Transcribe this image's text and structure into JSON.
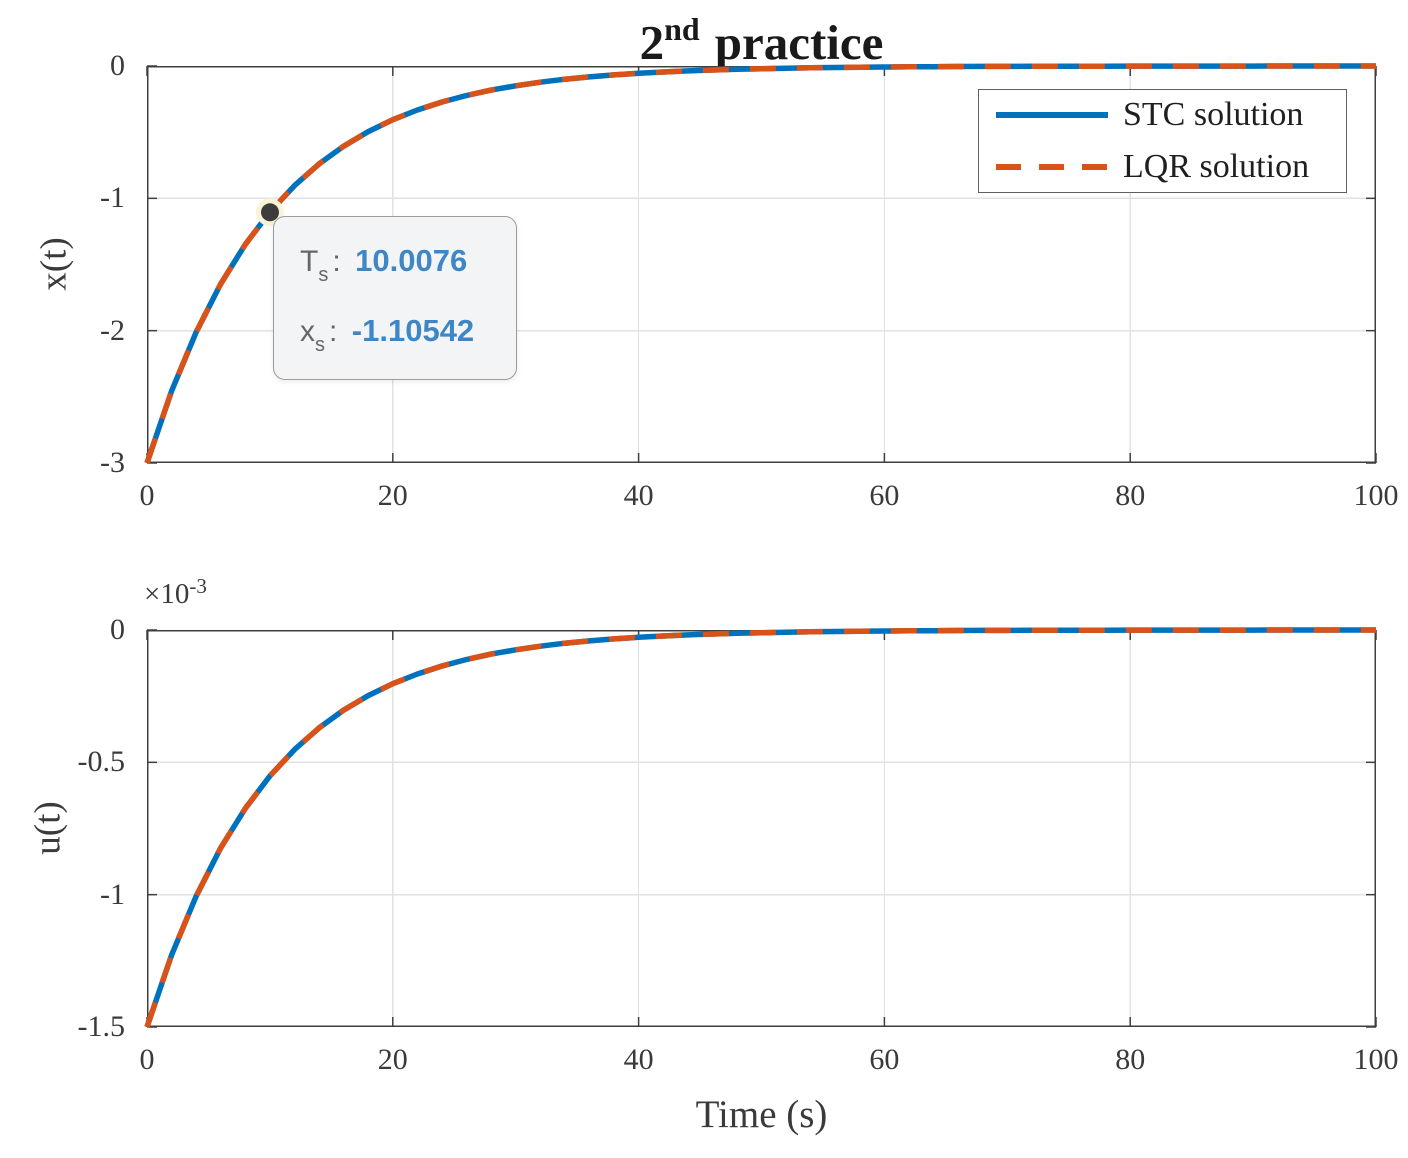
{
  "figure": {
    "title": {
      "base": "2",
      "sup": "nd",
      "rest": "practice"
    }
  },
  "colors": {
    "stc_line": "#0072BD",
    "lqr_line": "#D95319",
    "axis": "#3f3f3f",
    "grid": "#e2e2e2",
    "tick_label": "#3a3a3a",
    "legend_border": "#5f5f5f",
    "datatip_label": "#666666",
    "datatip_value": "#3e86c4",
    "marker": "#3c3c3c",
    "marker_halo": "#f8f4d8"
  },
  "legend": {
    "items": [
      {
        "label": "STC solution",
        "color": "#0072BD",
        "style": "solid"
      },
      {
        "label": "LQR solution",
        "color": "#D95319",
        "style": "dashed"
      }
    ]
  },
  "datatip": {
    "rows": [
      {
        "label": "T",
        "sub": "s",
        "value": "10.0076"
      },
      {
        "label": "x",
        "sub": "s",
        "value": "-1.10542"
      }
    ],
    "point": {
      "t": 10.0076,
      "value": -1.10542
    }
  },
  "chart_data": [
    {
      "type": "line",
      "title": "2nd practice",
      "xlabel": "",
      "ylabel": "x(t)",
      "xlim": [
        0,
        100
      ],
      "ylim": [
        -3,
        0
      ],
      "xticks": [
        0,
        20,
        40,
        60,
        80,
        100
      ],
      "yticks": [
        0,
        -1,
        -2,
        -3
      ],
      "grid": true,
      "legend_position": "northeast",
      "note": "STC and LQR curves coincide: x(t) = -3*exp(-t/10)",
      "marker_point": {
        "t": 10.0076,
        "value": -1.10542
      },
      "x": [
        0,
        2,
        4,
        6,
        8,
        10,
        12,
        14,
        16,
        18,
        20,
        22,
        24,
        26,
        28,
        30,
        32,
        34,
        36,
        38,
        40,
        42,
        44,
        46,
        48,
        50,
        52,
        54,
        56,
        58,
        60,
        62,
        64,
        66,
        68,
        70,
        72,
        74,
        76,
        78,
        80,
        82,
        84,
        86,
        88,
        90,
        92,
        94,
        96,
        98,
        100
      ],
      "series": [
        {
          "name": "STC solution",
          "color": "#0072BD",
          "style": "solid",
          "values": [
            -3,
            -2.4562,
            -2.011,
            -1.6464,
            -1.348,
            -1.1036,
            -0.9036,
            -0.7398,
            -0.6057,
            -0.4959,
            -0.406,
            -0.3324,
            -0.2722,
            -0.2228,
            -0.1824,
            -0.1494,
            -0.1223,
            -0.1001,
            -0.082,
            -0.0671,
            -0.0549,
            -0.045,
            -0.0368,
            -0.0302,
            -0.0247,
            -0.0202,
            -0.0166,
            -0.0136,
            -0.0111,
            -0.0091,
            -0.0074,
            -0.0061,
            -0.005,
            -0.0041,
            -0.0033,
            -0.0027,
            -0.0022,
            -0.0018,
            -0.0015,
            -0.0012,
            -0.001,
            -0.0008,
            -0.0007,
            -0.0005,
            -0.0004,
            -0.0004,
            -0.0003,
            -0.0002,
            -0.0002,
            -0.0002,
            -0.0001
          ]
        },
        {
          "name": "LQR solution",
          "color": "#D95319",
          "style": "dashed",
          "values": [
            -3,
            -2.4562,
            -2.011,
            -1.6464,
            -1.348,
            -1.1036,
            -0.9036,
            -0.7398,
            -0.6057,
            -0.4959,
            -0.406,
            -0.3324,
            -0.2722,
            -0.2228,
            -0.1824,
            -0.1494,
            -0.1223,
            -0.1001,
            -0.082,
            -0.0671,
            -0.0549,
            -0.045,
            -0.0368,
            -0.0302,
            -0.0247,
            -0.0202,
            -0.0166,
            -0.0136,
            -0.0111,
            -0.0091,
            -0.0074,
            -0.0061,
            -0.005,
            -0.0041,
            -0.0033,
            -0.0027,
            -0.0022,
            -0.0018,
            -0.0015,
            -0.0012,
            -0.001,
            -0.0008,
            -0.0007,
            -0.0005,
            -0.0004,
            -0.0004,
            -0.0003,
            -0.0002,
            -0.0002,
            -0.0002,
            -0.0001
          ]
        }
      ]
    },
    {
      "type": "line",
      "title": "",
      "xlabel": "Time (s)",
      "ylabel": "u(t)",
      "y_multiplier": {
        "base": "×10",
        "sup": "-3"
      },
      "y_units": "×10⁻³",
      "xlim": [
        0,
        100
      ],
      "ylim": [
        -1.5,
        0
      ],
      "xticks": [
        0,
        20,
        40,
        60,
        80,
        100
      ],
      "yticks": [
        0,
        -0.5,
        -1,
        -1.5
      ],
      "grid": true,
      "note": "values in units of 1e-3; STC and LQR curves coincide: u(t) = -1.5e-3*exp(-t/10)",
      "x": [
        0,
        2,
        4,
        6,
        8,
        10,
        12,
        14,
        16,
        18,
        20,
        22,
        24,
        26,
        28,
        30,
        32,
        34,
        36,
        38,
        40,
        42,
        44,
        46,
        48,
        50,
        52,
        54,
        56,
        58,
        60,
        62,
        64,
        66,
        68,
        70,
        72,
        74,
        76,
        78,
        80,
        82,
        84,
        86,
        88,
        90,
        92,
        94,
        96,
        98,
        100
      ],
      "series": [
        {
          "name": "STC solution",
          "color": "#0072BD",
          "style": "solid",
          "values": [
            -1.5,
            -1.2281,
            -1.0055,
            -0.8232,
            -0.674,
            -0.5518,
            -0.4518,
            -0.3699,
            -0.3028,
            -0.2479,
            -0.203,
            -0.1662,
            -0.1361,
            -0.1114,
            -0.0912,
            -0.0747,
            -0.0611,
            -0.05,
            -0.041,
            -0.0336,
            -0.0275,
            -0.0225,
            -0.0184,
            -0.0151,
            -0.0124,
            -0.0101,
            -0.0083,
            -0.0068,
            -0.0056,
            -0.0045,
            -0.0037,
            -0.003,
            -0.0025,
            -0.002,
            -0.0017,
            -0.0014,
            -0.0011,
            -0.0009,
            -0.0008,
            -0.0006,
            -0.0005,
            -0.0004,
            -0.0003,
            -0.0003,
            -0.0002,
            -0.0002,
            -0.0001,
            -0.0001,
            -0.0001,
            -0.0001,
            -0.0001
          ]
        },
        {
          "name": "LQR solution",
          "color": "#D95319",
          "style": "dashed",
          "values": [
            -1.5,
            -1.2281,
            -1.0055,
            -0.8232,
            -0.674,
            -0.5518,
            -0.4518,
            -0.3699,
            -0.3028,
            -0.2479,
            -0.203,
            -0.1662,
            -0.1361,
            -0.1114,
            -0.0912,
            -0.0747,
            -0.0611,
            -0.05,
            -0.041,
            -0.0336,
            -0.0275,
            -0.0225,
            -0.0184,
            -0.0151,
            -0.0124,
            -0.0101,
            -0.0083,
            -0.0068,
            -0.0056,
            -0.0045,
            -0.0037,
            -0.003,
            -0.0025,
            -0.002,
            -0.0017,
            -0.0014,
            -0.0011,
            -0.0009,
            -0.0008,
            -0.0006,
            -0.0005,
            -0.0004,
            -0.0003,
            -0.0003,
            -0.0002,
            -0.0002,
            -0.0001,
            -0.0001,
            -0.0001,
            -0.0001,
            -0.0001
          ]
        }
      ]
    }
  ]
}
